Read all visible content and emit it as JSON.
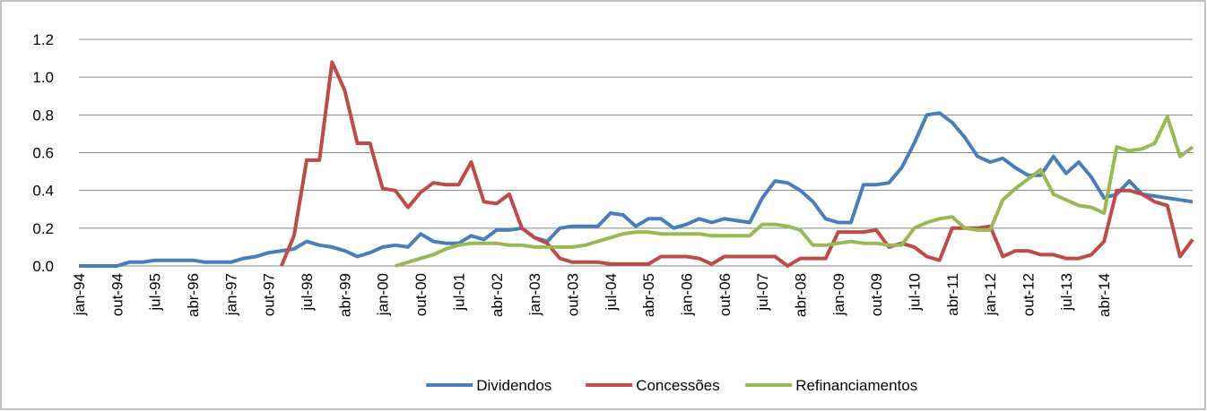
{
  "chart_data": {
    "type": "line",
    "categories": [
      "jan-94",
      null,
      null,
      "out-94",
      null,
      null,
      "jul-95",
      null,
      null,
      "abr-96",
      null,
      null,
      "jan-97",
      null,
      null,
      "out-97",
      null,
      null,
      "jul-98",
      null,
      null,
      "abr-99",
      null,
      null,
      "jan-00",
      null,
      null,
      "out-00",
      null,
      null,
      "jul-01",
      null,
      null,
      "abr-02",
      null,
      null,
      "jan-03",
      null,
      null,
      "out-03",
      null,
      null,
      "jul-04",
      null,
      null,
      "abr-05",
      null,
      null,
      "jan-06",
      null,
      null,
      "out-06",
      null,
      null,
      "jul-07",
      null,
      null,
      "abr-08",
      null,
      null,
      "jan-09",
      null,
      null,
      "out-09",
      null,
      null,
      "jul-10",
      null,
      null,
      "abr-11",
      null,
      null,
      "jan-12",
      null,
      null,
      "out-12",
      null,
      null,
      "jul-13",
      null,
      null,
      "abr-14",
      null,
      null,
      null,
      null,
      null,
      null,
      null
    ],
    "series": [
      {
        "name": "Dividendos",
        "color": "#4a7ebb",
        "values": [
          0,
          0,
          0,
          0,
          0.02,
          0.02,
          0.03,
          0.03,
          0.03,
          0.03,
          0.02,
          0.02,
          0.02,
          0.04,
          0.05,
          0.07,
          0.08,
          0.09,
          0.13,
          0.11,
          0.1,
          0.08,
          0.05,
          0.07,
          0.1,
          0.11,
          0.1,
          0.17,
          0.13,
          0.12,
          0.12,
          0.16,
          0.14,
          0.19,
          0.19,
          0.2,
          0.15,
          0.13,
          0.2,
          0.21,
          0.21,
          0.21,
          0.28,
          0.27,
          0.21,
          0.25,
          0.25,
          0.2,
          0.22,
          0.25,
          0.23,
          0.25,
          0.24,
          0.23,
          0.36,
          0.45,
          0.44,
          0.4,
          0.34,
          0.25,
          0.23,
          0.23,
          0.43,
          0.43,
          0.44,
          0.52,
          0.65,
          0.8,
          0.81,
          0.76,
          0.68,
          0.58,
          0.55,
          0.57,
          0.52,
          0.48,
          0.48,
          0.58,
          0.49,
          0.55,
          0.47,
          0.36,
          0.38,
          0.45,
          0.38,
          0.37,
          0.36,
          0.35,
          0.34
        ]
      },
      {
        "name": "Concessões",
        "color": "#be4b48",
        "values": [
          null,
          null,
          null,
          null,
          null,
          null,
          null,
          null,
          null,
          null,
          null,
          null,
          null,
          null,
          null,
          null,
          0,
          0.16,
          0.56,
          0.56,
          1.08,
          0.93,
          0.65,
          0.65,
          0.41,
          0.4,
          0.31,
          0.39,
          0.44,
          0.43,
          0.43,
          0.55,
          0.34,
          0.33,
          0.38,
          0.2,
          0.15,
          0.12,
          0.04,
          0.02,
          0.02,
          0.02,
          0.01,
          0.01,
          0.01,
          0.01,
          0.05,
          0.05,
          0.05,
          0.04,
          0.01,
          0.05,
          0.05,
          0.05,
          0.05,
          0.05,
          0,
          0.04,
          0.04,
          0.04,
          0.18,
          0.18,
          0.18,
          0.19,
          0.1,
          0.12,
          0.1,
          0.05,
          0.03,
          0.2,
          0.2,
          0.2,
          0.21,
          0.05,
          0.08,
          0.08,
          0.06,
          0.06,
          0.04,
          0.04,
          0.06,
          0.13,
          0.4,
          0.4,
          0.38,
          0.34,
          0.32,
          0.05,
          0.14
        ]
      },
      {
        "name": "Refinanciamentos",
        "color": "#98b954",
        "values": [
          null,
          null,
          null,
          null,
          null,
          null,
          null,
          null,
          null,
          null,
          null,
          null,
          null,
          null,
          null,
          null,
          null,
          null,
          null,
          null,
          null,
          null,
          null,
          null,
          null,
          0,
          0.02,
          0.04,
          0.06,
          0.09,
          0.11,
          0.12,
          0.12,
          0.12,
          0.11,
          0.11,
          0.1,
          0.1,
          0.1,
          0.1,
          0.11,
          0.13,
          0.15,
          0.17,
          0.18,
          0.18,
          0.17,
          0.17,
          0.17,
          0.17,
          0.16,
          0.16,
          0.16,
          0.16,
          0.22,
          0.22,
          0.21,
          0.19,
          0.11,
          0.11,
          0.12,
          0.13,
          0.12,
          0.12,
          0.11,
          0.11,
          0.2,
          0.23,
          0.25,
          0.26,
          0.2,
          0.19,
          0.19,
          0.35,
          0.41,
          0.46,
          0.51,
          0.38,
          0.35,
          0.32,
          0.31,
          0.28,
          0.63,
          0.61,
          0.62,
          0.65,
          0.79,
          0.58,
          0.63
        ]
      }
    ],
    "ylim": [
      0,
      1.2
    ],
    "yticks": [
      {
        "value": 0,
        "label": "0.0"
      },
      0.2,
      0.4,
      0.6,
      0.8,
      {
        "value": 1,
        "label": "1.0"
      },
      1.2
    ],
    "grid": true,
    "legend": "bottom"
  }
}
